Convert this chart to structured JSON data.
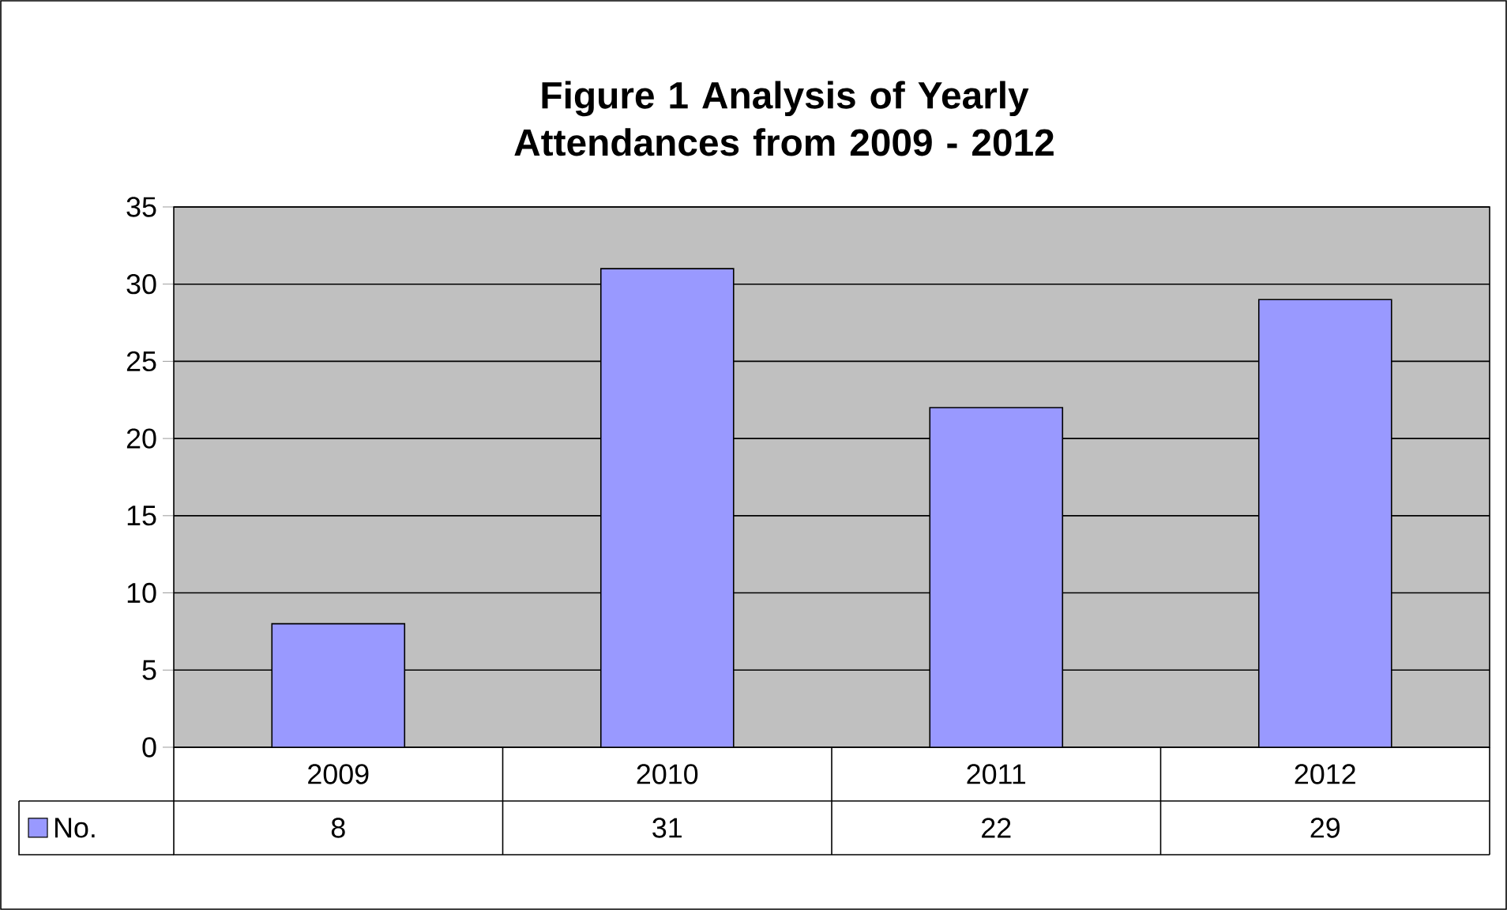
{
  "chart_data": {
    "type": "bar",
    "title": "Figure 1 Analysis of Yearly Attendances from 2009 - 2012",
    "categories": [
      "2009",
      "2010",
      "2011",
      "2012"
    ],
    "series": [
      {
        "name": "No.",
        "color": "#9999ff",
        "values": [
          8,
          31,
          22,
          29
        ]
      }
    ],
    "ylim": [
      0,
      35
    ],
    "yticks": [
      0,
      5,
      10,
      15,
      20,
      25,
      30,
      35
    ],
    "grid": "y",
    "legend": "bottom",
    "data_labels": true
  }
}
